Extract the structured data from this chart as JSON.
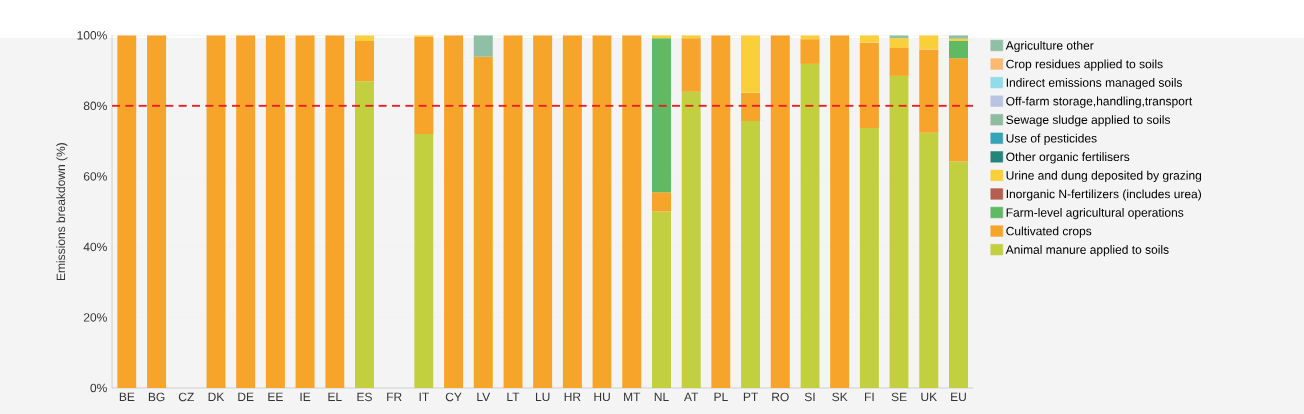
{
  "chart_data": {
    "type": "bar",
    "stacked": true,
    "ylabel": "Emissions breakdown (%)",
    "categories": [
      "BE",
      "BG",
      "CZ",
      "DK",
      "DE",
      "EE",
      "IE",
      "EL",
      "ES",
      "FR",
      "IT",
      "CY",
      "LV",
      "LT",
      "LU",
      "HR",
      "HU",
      "MT",
      "NL",
      "AT",
      "PL",
      "PT",
      "RO",
      "SI",
      "SK",
      "FI",
      "SE",
      "UK",
      "EU"
    ],
    "series": [
      {
        "name": "Animal manure applied to soils",
        "color": "#c2cf3e",
        "values": [
          null,
          null,
          null,
          null,
          null,
          null,
          null,
          null,
          87,
          null,
          72,
          null,
          null,
          null,
          null,
          null,
          null,
          null,
          50,
          84,
          null,
          75.7,
          null,
          91.9,
          null,
          73.7,
          88.5,
          72.4,
          64.2
        ]
      },
      {
        "name": "Cultivated crops",
        "color": "#f6a42a",
        "values": [
          100,
          100,
          null,
          100,
          100,
          100,
          100,
          100,
          11.4,
          null,
          27.6,
          100,
          93.9,
          100,
          100,
          100,
          100,
          100,
          5.5,
          15.2,
          100,
          8.0,
          100,
          7.0,
          100,
          24.2,
          7.9,
          23.6,
          29.3
        ]
      },
      {
        "name": "Farm-level agricultural operations",
        "color": "#5fba63",
        "values": [
          null,
          null,
          null,
          null,
          null,
          null,
          null,
          null,
          null,
          null,
          null,
          null,
          null,
          null,
          null,
          null,
          null,
          null,
          43.7,
          null,
          null,
          null,
          null,
          null,
          null,
          null,
          null,
          null,
          4.9
        ]
      },
      {
        "name": "Inorganic N-fertilizers (includes urea)",
        "color": "#b55f50",
        "values": [
          null,
          null,
          null,
          null,
          null,
          null,
          null,
          null,
          null,
          null,
          null,
          null,
          null,
          null,
          null,
          null,
          null,
          null,
          null,
          null,
          null,
          null,
          null,
          null,
          null,
          null,
          null,
          null,
          null
        ]
      },
      {
        "name": "Urine and dung deposited by grazing",
        "color": "#f9cf3a",
        "values": [
          null,
          null,
          null,
          null,
          null,
          null,
          null,
          null,
          1.6,
          null,
          0.4,
          null,
          null,
          null,
          null,
          null,
          null,
          null,
          0.8,
          0.8,
          null,
          16.3,
          null,
          1.1,
          null,
          2.1,
          2.8,
          4.0,
          0.6
        ]
      },
      {
        "name": "Other organic fertilisers",
        "color": "#24867a",
        "values": [
          null,
          null,
          null,
          null,
          null,
          null,
          null,
          null,
          null,
          null,
          null,
          null,
          null,
          null,
          null,
          null,
          null,
          null,
          null,
          null,
          null,
          null,
          null,
          null,
          null,
          null,
          null,
          null,
          null
        ]
      },
      {
        "name": "Use of pesticides",
        "color": "#36a4b8",
        "values": [
          null,
          null,
          null,
          null,
          null,
          null,
          null,
          null,
          null,
          null,
          null,
          null,
          null,
          null,
          null,
          null,
          null,
          null,
          null,
          null,
          null,
          null,
          null,
          null,
          null,
          null,
          null,
          null,
          null
        ]
      },
      {
        "name": "Sewage sludge applied to soils",
        "color": "#90bba3",
        "values": [
          null,
          null,
          null,
          null,
          null,
          null,
          null,
          null,
          null,
          null,
          null,
          null,
          null,
          null,
          null,
          null,
          null,
          null,
          null,
          null,
          null,
          null,
          null,
          null,
          null,
          null,
          null,
          null,
          null
        ]
      },
      {
        "name": "Off-farm storage,handling,transport",
        "color": "#b9c4e0",
        "values": [
          null,
          null,
          null,
          null,
          null,
          null,
          null,
          null,
          null,
          null,
          null,
          null,
          null,
          null,
          null,
          null,
          null,
          null,
          null,
          null,
          null,
          null,
          null,
          null,
          null,
          null,
          null,
          null,
          null
        ]
      },
      {
        "name": "Indirect emissions managed soils",
        "color": "#90dde9",
        "values": [
          null,
          null,
          null,
          null,
          null,
          null,
          null,
          null,
          null,
          null,
          null,
          null,
          null,
          null,
          null,
          null,
          null,
          null,
          null,
          null,
          null,
          null,
          null,
          null,
          null,
          null,
          null,
          null,
          null
        ]
      },
      {
        "name": "Crop residues applied to soils",
        "color": "#fdb872",
        "values": [
          null,
          null,
          null,
          null,
          null,
          null,
          null,
          null,
          null,
          null,
          null,
          null,
          null,
          null,
          null,
          null,
          null,
          null,
          null,
          null,
          null,
          null,
          null,
          null,
          null,
          null,
          null,
          null,
          null
        ]
      },
      {
        "name": "Agriculture other",
        "color": "#8fbfa4",
        "values": [
          null,
          null,
          null,
          null,
          null,
          null,
          null,
          null,
          null,
          null,
          null,
          null,
          6.1,
          null,
          null,
          null,
          null,
          null,
          null,
          null,
          null,
          null,
          null,
          null,
          null,
          null,
          0.8,
          null,
          1.0
        ]
      }
    ],
    "ylim": [
      0,
      100
    ],
    "yticks": [
      {
        "value": 0,
        "label": "0%"
      },
      {
        "value": 20,
        "label": "20%"
      },
      {
        "value": 40,
        "label": "40%"
      },
      {
        "value": 60,
        "label": "60%"
      },
      {
        "value": 80,
        "label": "80%"
      },
      {
        "value": 100,
        "label": "100%"
      }
    ],
    "ref_lines": [
      {
        "axis": "y",
        "value": 80,
        "color": "#e8202a",
        "line_style": "dashed"
      }
    ],
    "grid": "y",
    "legend": "right"
  }
}
